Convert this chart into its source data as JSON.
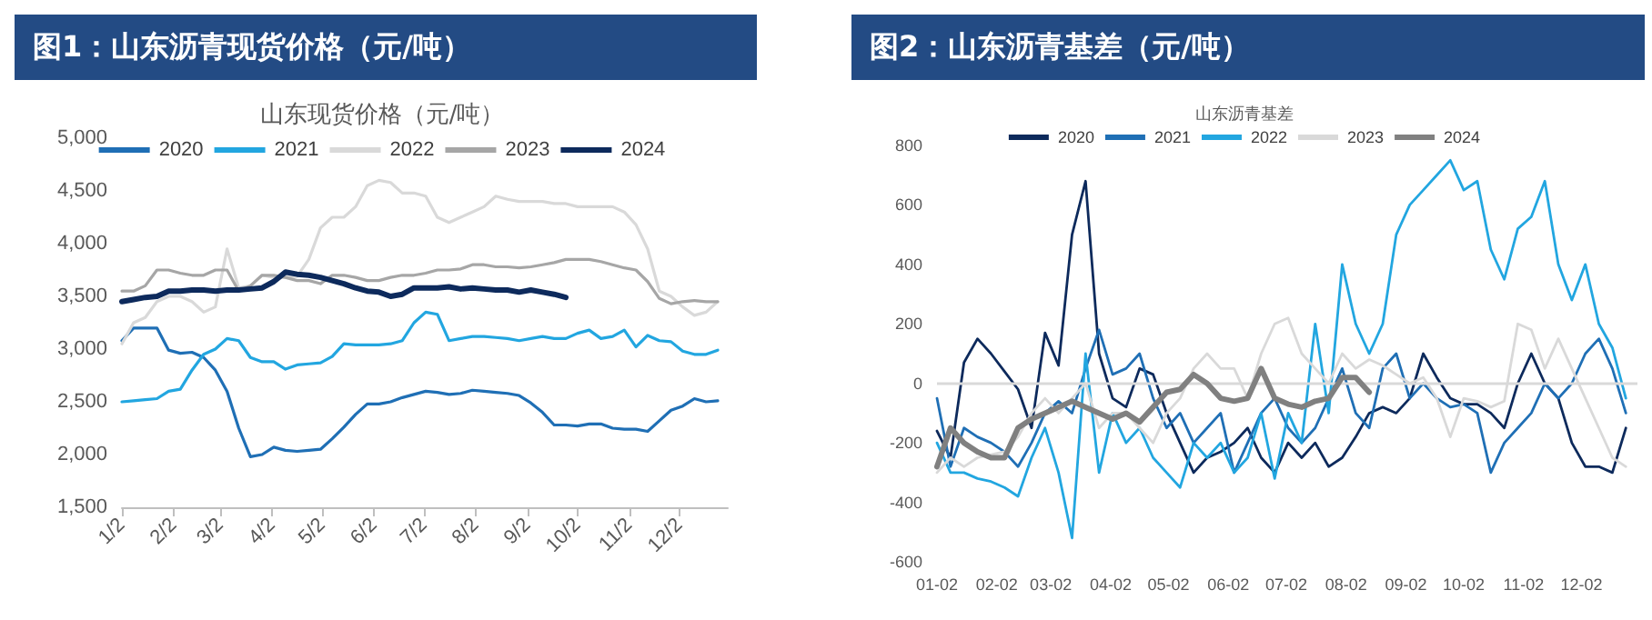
{
  "chart_data": [
    {
      "type": "line",
      "title": "图1：山东沥青现货价格（元/吨）",
      "subtitle": "山东现货价格（元/吨）",
      "legend": "top",
      "x": [
        "--01-02",
        "--01-09",
        "--01-16",
        "--01-23",
        "--01-30",
        "--02-06",
        "--02-13",
        "--02-20",
        "--02-27",
        "--03-06",
        "--03-13",
        "--03-20",
        "--03-27",
        "--04-03",
        "--04-10",
        "--04-17",
        "--04-24",
        "--05-01",
        "--05-08",
        "--05-15",
        "--05-22",
        "--05-29",
        "--06-05",
        "--06-12",
        "--06-19",
        "--06-26",
        "--07-03",
        "--07-10",
        "--07-17",
        "--07-24",
        "--07-31",
        "--08-07",
        "--08-14",
        "--08-21",
        "--08-28",
        "--09-04",
        "--09-11",
        "--09-18",
        "--09-25",
        "--10-02",
        "--10-09",
        "--10-16",
        "--10-23",
        "--10-30",
        "--11-06",
        "--11-13",
        "--11-20",
        "--11-27",
        "--12-04",
        "--12-11",
        "--12-18",
        "--12-25"
      ],
      "xlim": [
        "--01-02",
        "--12-31"
      ],
      "xticks": [
        {
          "value": "--01-02",
          "label": "1/2"
        },
        {
          "value": "--02-02",
          "label": "2/2"
        },
        {
          "value": "--03-02",
          "label": "3/2"
        },
        {
          "value": "--04-02",
          "label": "4/2"
        },
        {
          "value": "--05-02",
          "label": "5/2"
        },
        {
          "value": "--06-02",
          "label": "6/2"
        },
        {
          "value": "--07-02",
          "label": "7/2"
        },
        {
          "value": "--08-02",
          "label": "8/2"
        },
        {
          "value": "--09-02",
          "label": "9/2"
        },
        {
          "value": "--10-02",
          "label": "10/2"
        },
        {
          "value": "--11-02",
          "label": "11/2"
        },
        {
          "value": "--12-02",
          "label": "12/2"
        }
      ],
      "ylim": [
        1500,
        5000
      ],
      "yticks": [
        {
          "value": 1500,
          "label": "1,500"
        },
        {
          "value": 2000,
          "label": "2,000"
        },
        {
          "value": 2500,
          "label": "2,500"
        },
        {
          "value": 3000,
          "label": "3,000"
        },
        {
          "value": 3500,
          "label": "3,500"
        },
        {
          "value": 4000,
          "label": "4,000"
        },
        {
          "value": 4500,
          "label": "4,500"
        },
        {
          "value": 5000,
          "label": "5,000"
        }
      ],
      "series": [
        {
          "name": "2020",
          "color": "#1f6fb5",
          "values": [
            3080,
            3200,
            3200,
            3200,
            2990,
            2960,
            2970,
            2920,
            2800,
            2600,
            2250,
            1980,
            2000,
            2070,
            2040,
            2030,
            2040,
            2050,
            2150,
            2260,
            2380,
            2480,
            2480,
            2500,
            2540,
            2570,
            2600,
            2590,
            2570,
            2580,
            2610,
            2600,
            2590,
            2580,
            2560,
            2490,
            2400,
            2280,
            2280,
            2270,
            2290,
            2290,
            2250,
            2240,
            2240,
            2220,
            2320,
            2420,
            2460,
            2530,
            2500,
            2510
          ]
        },
        {
          "name": "2021",
          "color": "#22a6e0",
          "values": [
            2500,
            2510,
            2520,
            2530,
            2600,
            2620,
            2800,
            2950,
            3000,
            3100,
            3080,
            2920,
            2880,
            2880,
            2810,
            2850,
            2860,
            2870,
            2930,
            3050,
            3040,
            3040,
            3040,
            3050,
            3080,
            3250,
            3350,
            3330,
            3080,
            3100,
            3120,
            3120,
            3110,
            3100,
            3080,
            3100,
            3120,
            3100,
            3100,
            3150,
            3180,
            3100,
            3120,
            3180,
            3020,
            3130,
            3080,
            3070,
            2980,
            2950,
            2950,
            2990
          ]
        },
        {
          "name": "2022",
          "color": "#d9d9d9",
          "values": [
            3050,
            3250,
            3300,
            3450,
            3500,
            3500,
            3450,
            3350,
            3400,
            3950,
            3580,
            3600,
            3700,
            3680,
            3680,
            3690,
            3850,
            4150,
            4250,
            4250,
            4350,
            4550,
            4600,
            4580,
            4480,
            4480,
            4450,
            4250,
            4200,
            4250,
            4300,
            4350,
            4450,
            4420,
            4400,
            4400,
            4400,
            4380,
            4380,
            4350,
            4350,
            4350,
            4350,
            4300,
            4180,
            3950,
            3550,
            3500,
            3400,
            3320,
            3350,
            3450
          ]
        },
        {
          "name": "2023",
          "color": "#a6a6a6",
          "values": [
            3550,
            3550,
            3600,
            3750,
            3750,
            3720,
            3700,
            3700,
            3750,
            3750,
            3550,
            3600,
            3700,
            3700,
            3680,
            3650,
            3650,
            3620,
            3700,
            3700,
            3680,
            3650,
            3650,
            3680,
            3700,
            3700,
            3720,
            3750,
            3750,
            3760,
            3800,
            3800,
            3780,
            3780,
            3770,
            3780,
            3800,
            3820,
            3850,
            3850,
            3850,
            3830,
            3800,
            3770,
            3750,
            3640,
            3480,
            3430,
            3450,
            3460,
            3450,
            3450
          ]
        },
        {
          "name": "2024",
          "color": "#0d2a5c",
          "values": [
            3450,
            3470,
            3490,
            3500,
            3550,
            3550,
            3560,
            3560,
            3550,
            3560,
            3560,
            3570,
            3580,
            3640,
            3730,
            3710,
            3700,
            3680,
            3650,
            3620,
            3580,
            3550,
            3540,
            3500,
            3520,
            3580,
            3580,
            3580,
            3590,
            3570,
            3580,
            3570,
            3560,
            3560,
            3540,
            3560,
            3540,
            3520,
            3490,
            null,
            null,
            null,
            null,
            null,
            null,
            null,
            null,
            null,
            null,
            null,
            null,
            null
          ]
        }
      ]
    },
    {
      "type": "line",
      "title": "图2：山东沥青基差（元/吨）",
      "subtitle": "山东沥青基差",
      "legend": "top",
      "x": [
        "--01-02",
        "--01-09",
        "--01-16",
        "--01-23",
        "--01-30",
        "--02-06",
        "--02-13",
        "--02-20",
        "--02-27",
        "--03-06",
        "--03-13",
        "--03-20",
        "--03-27",
        "--04-03",
        "--04-10",
        "--04-17",
        "--04-24",
        "--05-01",
        "--05-08",
        "--05-15",
        "--05-22",
        "--05-29",
        "--06-05",
        "--06-12",
        "--06-19",
        "--06-26",
        "--07-03",
        "--07-10",
        "--07-17",
        "--07-24",
        "--07-31",
        "--08-07",
        "--08-14",
        "--08-21",
        "--08-28",
        "--09-04",
        "--09-11",
        "--09-18",
        "--09-25",
        "--10-02",
        "--10-09",
        "--10-16",
        "--10-23",
        "--10-30",
        "--11-06",
        "--11-13",
        "--11-20",
        "--11-27",
        "--12-04",
        "--12-11",
        "--12-18",
        "--12-25"
      ],
      "xlim": [
        "--01-02",
        "--12-31"
      ],
      "xticks": [
        {
          "value": "--01-02",
          "label": "01-02"
        },
        {
          "value": "--02-02",
          "label": "02-02"
        },
        {
          "value": "--03-02",
          "label": "03-02"
        },
        {
          "value": "--04-02",
          "label": "04-02"
        },
        {
          "value": "--05-02",
          "label": "05-02"
        },
        {
          "value": "--06-02",
          "label": "06-02"
        },
        {
          "value": "--07-02",
          "label": "07-02"
        },
        {
          "value": "--08-02",
          "label": "08-02"
        },
        {
          "value": "--09-02",
          "label": "09-02"
        },
        {
          "value": "--10-02",
          "label": "10-02"
        },
        {
          "value": "--11-02",
          "label": "11-02"
        },
        {
          "value": "--12-02",
          "label": "12-02"
        }
      ],
      "ylim": [
        -600,
        800
      ],
      "yticks": [
        -600,
        -400,
        -200,
        0,
        200,
        400,
        600,
        800
      ],
      "ref_lines": [
        {
          "axis": "y",
          "value": 0,
          "color": "#d9d9d9"
        }
      ],
      "series": [
        {
          "name": "2020",
          "color": "#0d2a5c",
          "values": [
            -160,
            -250,
            70,
            150,
            100,
            40,
            -20,
            -150,
            170,
            60,
            500,
            680,
            100,
            -50,
            -80,
            50,
            30,
            -100,
            -200,
            -300,
            -250,
            -230,
            -200,
            -150,
            -250,
            -300,
            -200,
            -250,
            -200,
            -280,
            -250,
            -180,
            -100,
            -80,
            -100,
            -50,
            100,
            20,
            -50,
            -70,
            -70,
            -100,
            -150,
            0,
            100,
            0,
            -50,
            -200,
            -280,
            -280,
            -300,
            -150
          ]
        },
        {
          "name": "2021",
          "color": "#1f6fb5",
          "values": [
            -50,
            -280,
            -150,
            -180,
            -200,
            -230,
            -280,
            -200,
            -100,
            -60,
            -100,
            50,
            180,
            30,
            50,
            100,
            -50,
            -150,
            -100,
            -200,
            -150,
            -100,
            -300,
            -200,
            -100,
            -50,
            -150,
            -200,
            -150,
            -50,
            50,
            -100,
            -150,
            50,
            100,
            -50,
            0,
            -50,
            -80,
            -70,
            -100,
            -300,
            -200,
            -150,
            -100,
            0,
            -50,
            0,
            100,
            150,
            50,
            -100
          ]
        },
        {
          "name": "2022",
          "color": "#22a6e0",
          "values": [
            -200,
            -300,
            -300,
            -320,
            -330,
            -350,
            -380,
            -250,
            -150,
            -300,
            -520,
            100,
            -300,
            -100,
            -200,
            -150,
            -250,
            -300,
            -350,
            -200,
            -250,
            -200,
            -300,
            -250,
            -100,
            -320,
            -100,
            -200,
            200,
            -100,
            400,
            200,
            100,
            200,
            500,
            600,
            650,
            700,
            750,
            650,
            680,
            450,
            350,
            520,
            560,
            680,
            400,
            280,
            400,
            200,
            120,
            -50
          ]
        },
        {
          "name": "2023",
          "color": "#d9d9d9",
          "values": [
            -300,
            -250,
            -280,
            -250,
            -240,
            -230,
            -180,
            -100,
            -50,
            -100,
            -50,
            0,
            -150,
            -100,
            -100,
            -150,
            -200,
            -100,
            -50,
            50,
            100,
            50,
            50,
            -50,
            100,
            200,
            220,
            100,
            50,
            0,
            100,
            50,
            80,
            60,
            30,
            0,
            20,
            -50,
            -180,
            -50,
            -60,
            -80,
            -60,
            200,
            180,
            50,
            150,
            50,
            -50,
            -150,
            -250,
            -280
          ]
        },
        {
          "name": "2024",
          "color": "#808080",
          "values": [
            -280,
            -150,
            -200,
            -230,
            -250,
            -250,
            -150,
            -120,
            -100,
            -80,
            -60,
            -80,
            -100,
            -120,
            -100,
            -130,
            -80,
            -30,
            -20,
            30,
            0,
            -50,
            -60,
            -50,
            50,
            -50,
            -70,
            -80,
            -60,
            -50,
            20,
            20,
            -30,
            null,
            null,
            null,
            null,
            null,
            null,
            null,
            null,
            null,
            null,
            null,
            null,
            null,
            null,
            null,
            null,
            null,
            null,
            null
          ]
        }
      ]
    }
  ]
}
